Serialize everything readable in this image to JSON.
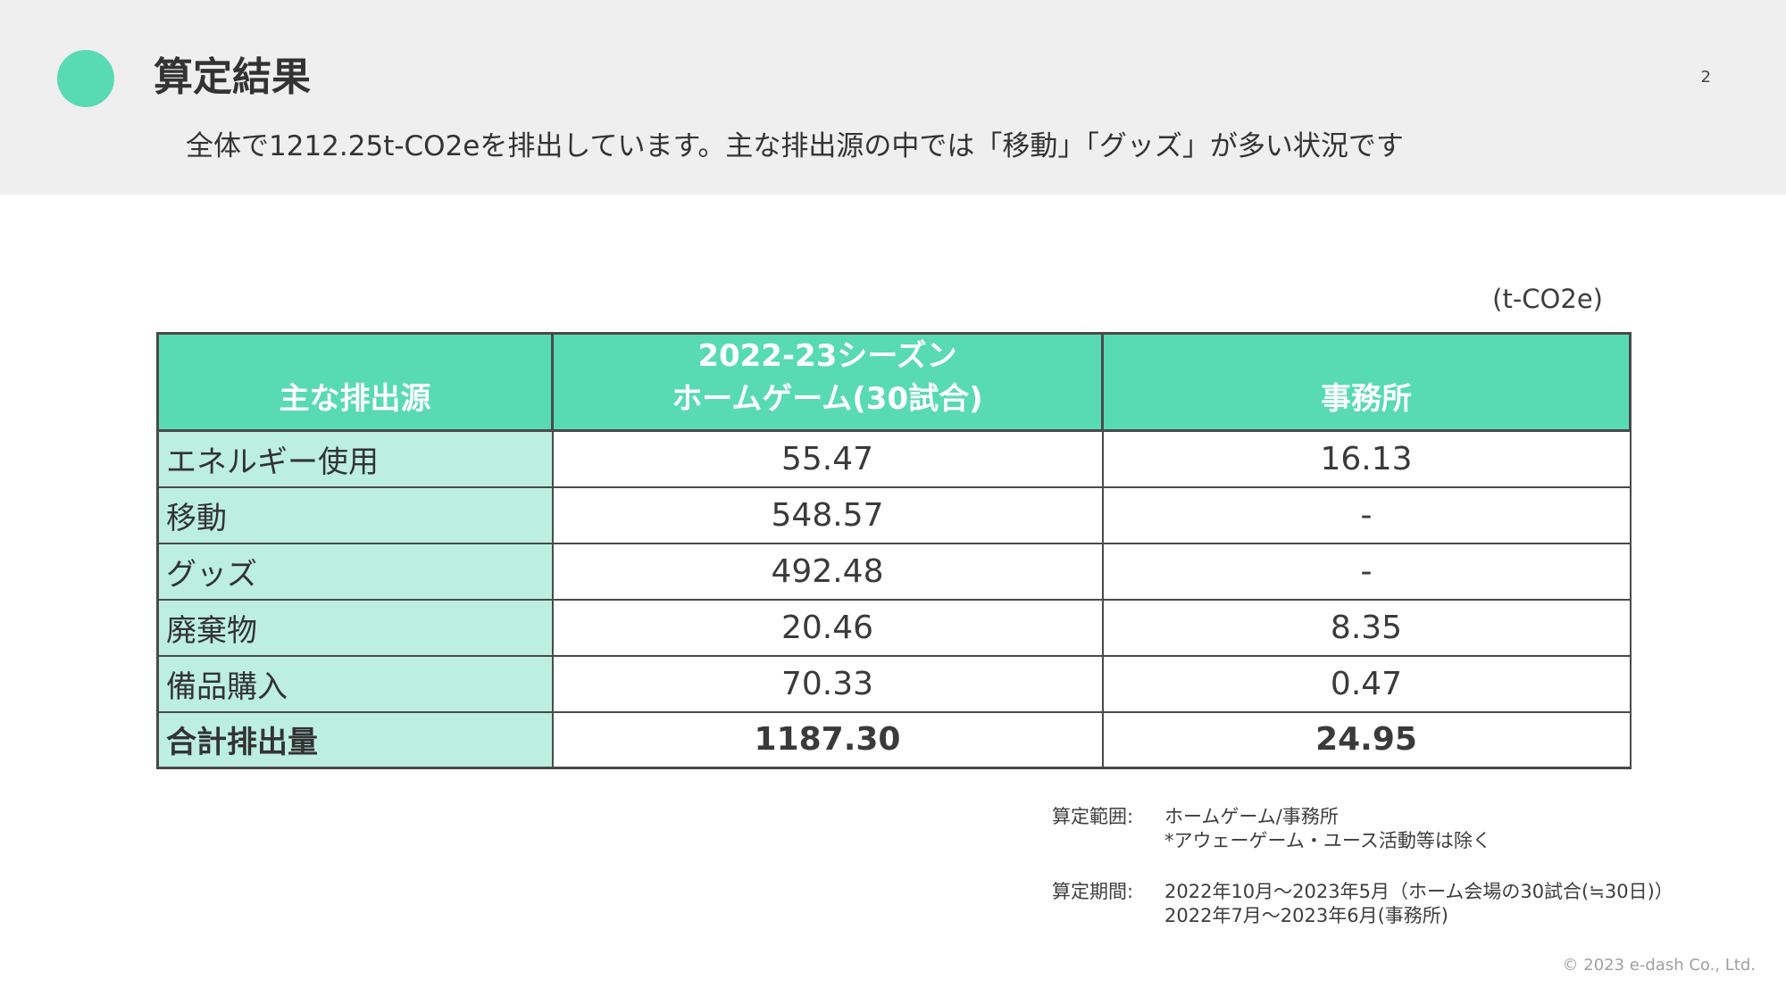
{
  "header": {
    "title": "算定結果",
    "page_number": "2",
    "subtitle": "全体で1212.25t-CO2eを排出しています。主な排出源の中では「移動」「グッズ」が多い状況です",
    "accent_color": "#58dab3"
  },
  "table": {
    "unit": "(t-CO2e)",
    "columns": [
      "主な排出源",
      [
        "2022-23シーズン",
        "ホームゲーム(30試合)"
      ],
      "事務所"
    ],
    "rows": [
      {
        "source": "エネルギー使用",
        "home_games": "55.47",
        "office": "16.13"
      },
      {
        "source": "移動",
        "home_games": "548.57",
        "office": "-"
      },
      {
        "source": "グッズ",
        "home_games": "492.48",
        "office": "-"
      },
      {
        "source": "廃棄物",
        "home_games": "20.46",
        "office": "8.35"
      },
      {
        "source": "備品購入",
        "home_games": "70.33",
        "office": "0.47"
      }
    ],
    "total": {
      "source": "合計排出量",
      "home_games": "1187.30",
      "office": "24.95"
    },
    "header_color": "#58dab3",
    "label_column_color": "#bcefe0"
  },
  "notes": {
    "scope_label": "算定範囲:",
    "scope_lines": [
      "ホームゲーム/事務所",
      "*アウェーゲーム・ユース活動等は除く"
    ],
    "period_label": "算定期間:",
    "period_lines": [
      "2022年10月～2023年5月（ホーム会場の30試合(≒30日)）",
      "2022年7月～2023年6月(事務所)"
    ]
  },
  "footer": {
    "copyright": "© 2023 e-dash Co., Ltd."
  }
}
